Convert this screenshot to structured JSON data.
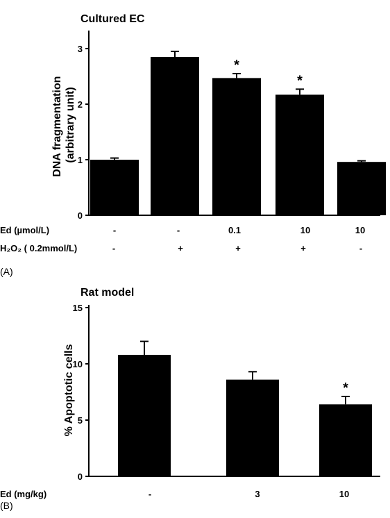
{
  "chart_data": [
    {
      "type": "bar",
      "panel_label": "(A)",
      "title": "Cultured EC",
      "ylabel": "DNA fragmentation\n(arbitrary unit)",
      "ylim": [
        0,
        3.5
      ],
      "yticks": [
        0,
        1,
        2,
        3
      ],
      "categories": [
        "1",
        "2",
        "3",
        "4",
        "5"
      ],
      "values": [
        1.0,
        2.85,
        2.47,
        2.17,
        0.96
      ],
      "errors": [
        0.03,
        0.1,
        0.08,
        0.1,
        0.02
      ],
      "significance": [
        "",
        "",
        "*",
        "*",
        ""
      ],
      "conditions": [
        {
          "label": "Ed (µmol/L)",
          "values": [
            "-",
            "-",
            "0.1",
            "10",
            "10"
          ]
        },
        {
          "label": "H₂O₂ ( 0.2mmol/L)",
          "values": [
            "-",
            "+",
            "+",
            "+",
            "-"
          ]
        }
      ],
      "bar_color": "#000000",
      "grid": false
    },
    {
      "type": "bar",
      "panel_label": "(B)",
      "title": "Rat model",
      "ylabel": "% Apoptotic cells",
      "ylim": [
        0,
        15
      ],
      "yticks": [
        0,
        5,
        10,
        15
      ],
      "categories": [
        "1",
        "2",
        "3"
      ],
      "values": [
        10.8,
        8.6,
        6.4
      ],
      "errors": [
        1.2,
        0.7,
        0.7
      ],
      "significance": [
        "",
        "",
        "*"
      ],
      "conditions": [
        {
          "label": "Ed (mg/kg)",
          "values": [
            "-",
            "3",
            "10"
          ]
        }
      ],
      "bar_color": "#000000",
      "grid": false
    }
  ]
}
